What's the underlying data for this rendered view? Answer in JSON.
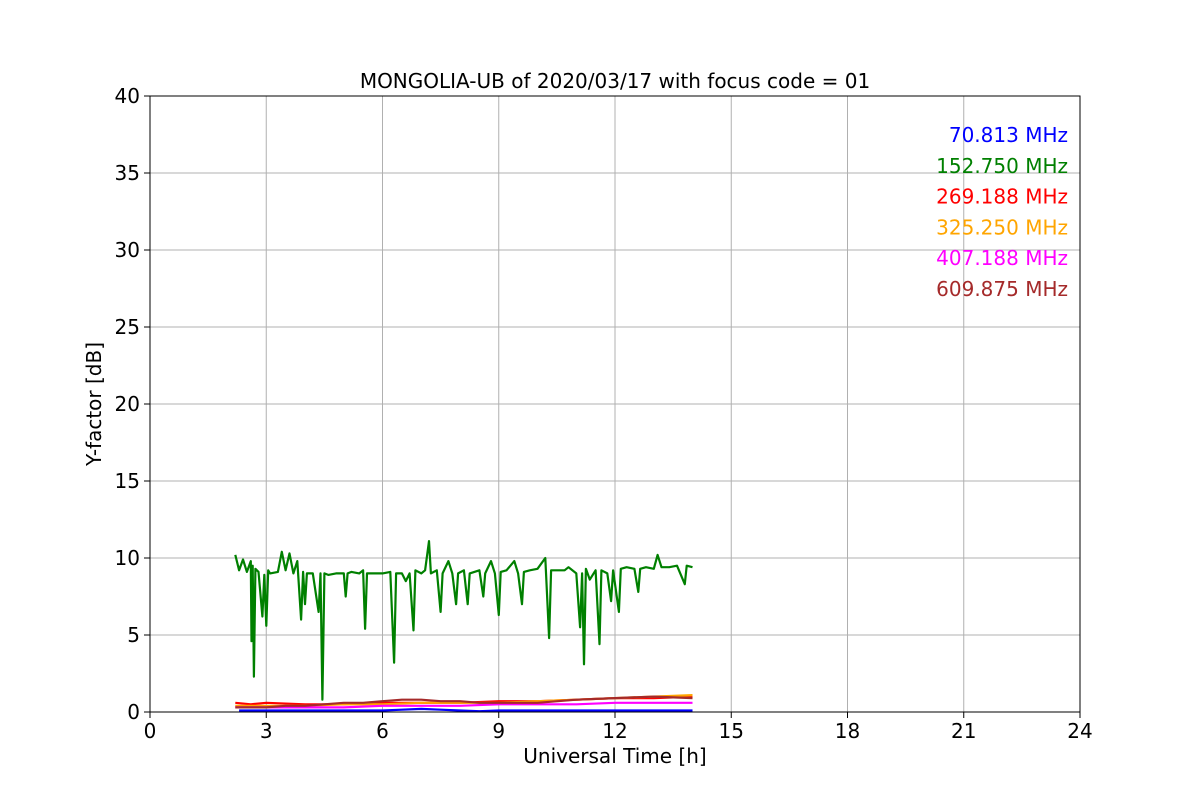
{
  "chart_data": {
    "type": "line",
    "title": "MONGOLIA-UB of 2020/03/17 with focus code = 01",
    "xlabel": "Universal Time [h]",
    "ylabel": "Y-factor [dB]",
    "xlim": [
      0,
      24
    ],
    "ylim": [
      0,
      40
    ],
    "xticks": [
      0,
      3,
      6,
      9,
      12,
      15,
      18,
      21,
      24
    ],
    "yticks": [
      0,
      5,
      10,
      15,
      20,
      25,
      30,
      35,
      40
    ],
    "grid": true,
    "legend_position": "top-right",
    "series": [
      {
        "name": "70.813 MHz",
        "color": "#0000ff",
        "points": [
          [
            2.3,
            0.1
          ],
          [
            3.0,
            0.1
          ],
          [
            4.0,
            0.1
          ],
          [
            5.0,
            0.1
          ],
          [
            6.0,
            0.1
          ],
          [
            6.5,
            0.15
          ],
          [
            7.0,
            0.2
          ],
          [
            7.5,
            0.15
          ],
          [
            8.0,
            0.1
          ],
          [
            8.5,
            0.05
          ],
          [
            9.0,
            0.1
          ],
          [
            10.0,
            0.1
          ],
          [
            11.0,
            0.1
          ],
          [
            12.0,
            0.1
          ],
          [
            13.0,
            0.1
          ],
          [
            14.0,
            0.1
          ]
        ]
      },
      {
        "name": "152.750 MHz",
        "color": "#008000",
        "points": [
          [
            2.2,
            10.2
          ],
          [
            2.3,
            9.2
          ],
          [
            2.4,
            9.9
          ],
          [
            2.5,
            9.1
          ],
          [
            2.6,
            9.8
          ],
          [
            2.62,
            4.6
          ],
          [
            2.65,
            9.5
          ],
          [
            2.68,
            2.3
          ],
          [
            2.72,
            9.3
          ],
          [
            2.8,
            9.1
          ],
          [
            2.9,
            6.2
          ],
          [
            2.95,
            8.9
          ],
          [
            3.0,
            5.6
          ],
          [
            3.05,
            9.2
          ],
          [
            3.1,
            9.0
          ],
          [
            3.3,
            9.1
          ],
          [
            3.4,
            10.4
          ],
          [
            3.5,
            9.2
          ],
          [
            3.6,
            10.3
          ],
          [
            3.7,
            9.0
          ],
          [
            3.8,
            9.8
          ],
          [
            3.9,
            6.0
          ],
          [
            3.95,
            9.1
          ],
          [
            4.0,
            7.0
          ],
          [
            4.05,
            9.0
          ],
          [
            4.2,
            9.0
          ],
          [
            4.35,
            6.5
          ],
          [
            4.4,
            9.0
          ],
          [
            4.45,
            0.8
          ],
          [
            4.5,
            9.0
          ],
          [
            4.6,
            8.9
          ],
          [
            4.8,
            9.0
          ],
          [
            5.0,
            9.0
          ],
          [
            5.05,
            7.5
          ],
          [
            5.1,
            9.0
          ],
          [
            5.2,
            9.1
          ],
          [
            5.4,
            9.0
          ],
          [
            5.5,
            9.2
          ],
          [
            5.55,
            5.4
          ],
          [
            5.6,
            9.0
          ],
          [
            5.8,
            9.0
          ],
          [
            6.0,
            9.0
          ],
          [
            6.2,
            9.1
          ],
          [
            6.3,
            3.2
          ],
          [
            6.35,
            9.0
          ],
          [
            6.5,
            9.0
          ],
          [
            6.6,
            8.5
          ],
          [
            6.7,
            9.0
          ],
          [
            6.8,
            5.3
          ],
          [
            6.85,
            9.2
          ],
          [
            7.0,
            9.0
          ],
          [
            7.1,
            9.2
          ],
          [
            7.2,
            11.1
          ],
          [
            7.25,
            9.0
          ],
          [
            7.4,
            9.2
          ],
          [
            7.5,
            6.5
          ],
          [
            7.55,
            9.0
          ],
          [
            7.7,
            9.8
          ],
          [
            7.8,
            9.0
          ],
          [
            7.9,
            7.0
          ],
          [
            7.95,
            9.0
          ],
          [
            8.1,
            9.2
          ],
          [
            8.2,
            7.0
          ],
          [
            8.25,
            9.0
          ],
          [
            8.5,
            9.2
          ],
          [
            8.6,
            7.5
          ],
          [
            8.65,
            9.0
          ],
          [
            8.8,
            9.8
          ],
          [
            8.9,
            9.0
          ],
          [
            9.0,
            6.3
          ],
          [
            9.05,
            9.1
          ],
          [
            9.2,
            9.2
          ],
          [
            9.4,
            9.8
          ],
          [
            9.5,
            9.0
          ],
          [
            9.6,
            7.0
          ],
          [
            9.65,
            9.1
          ],
          [
            9.8,
            9.2
          ],
          [
            10.0,
            9.3
          ],
          [
            10.2,
            10.0
          ],
          [
            10.3,
            4.8
          ],
          [
            10.35,
            9.2
          ],
          [
            10.5,
            9.2
          ],
          [
            10.7,
            9.2
          ],
          [
            10.8,
            9.4
          ],
          [
            11.0,
            9.0
          ],
          [
            11.1,
            5.5
          ],
          [
            11.15,
            9.0
          ],
          [
            11.2,
            3.1
          ],
          [
            11.25,
            9.3
          ],
          [
            11.35,
            8.6
          ],
          [
            11.5,
            9.2
          ],
          [
            11.6,
            4.4
          ],
          [
            11.65,
            9.2
          ],
          [
            11.8,
            9.0
          ],
          [
            11.9,
            7.2
          ],
          [
            11.95,
            9.2
          ],
          [
            12.1,
            6.5
          ],
          [
            12.15,
            9.3
          ],
          [
            12.3,
            9.4
          ],
          [
            12.5,
            9.3
          ],
          [
            12.6,
            7.8
          ],
          [
            12.65,
            9.3
          ],
          [
            12.8,
            9.4
          ],
          [
            13.0,
            9.3
          ],
          [
            13.1,
            10.2
          ],
          [
            13.2,
            9.4
          ],
          [
            13.4,
            9.4
          ],
          [
            13.6,
            9.5
          ],
          [
            13.8,
            8.3
          ],
          [
            13.85,
            9.5
          ],
          [
            14.0,
            9.4
          ]
        ]
      },
      {
        "name": "269.188 MHz",
        "color": "#ff0000",
        "points": [
          [
            2.2,
            0.6
          ],
          [
            2.6,
            0.5
          ],
          [
            3.0,
            0.6
          ],
          [
            4.0,
            0.5
          ],
          [
            5.0,
            0.5
          ],
          [
            6.0,
            0.6
          ],
          [
            7.0,
            0.6
          ],
          [
            8.0,
            0.6
          ],
          [
            9.0,
            0.7
          ],
          [
            10.0,
            0.7
          ],
          [
            11.0,
            0.8
          ],
          [
            12.0,
            0.9
          ],
          [
            13.0,
            0.9
          ],
          [
            14.0,
            1.0
          ]
        ]
      },
      {
        "name": "325.250 MHz",
        "color": "#ffa500",
        "points": [
          [
            2.2,
            0.4
          ],
          [
            3.0,
            0.4
          ],
          [
            4.0,
            0.4
          ],
          [
            5.0,
            0.5
          ],
          [
            6.0,
            0.5
          ],
          [
            7.0,
            0.6
          ],
          [
            8.0,
            0.6
          ],
          [
            9.0,
            0.6
          ],
          [
            10.0,
            0.7
          ],
          [
            11.0,
            0.8
          ],
          [
            12.0,
            0.9
          ],
          [
            13.0,
            1.0
          ],
          [
            14.0,
            1.1
          ]
        ]
      },
      {
        "name": "407.188 MHz",
        "color": "#ff00ff",
        "points": [
          [
            2.2,
            0.3
          ],
          [
            3.0,
            0.3
          ],
          [
            4.0,
            0.3
          ],
          [
            5.0,
            0.3
          ],
          [
            6.0,
            0.4
          ],
          [
            7.0,
            0.4
          ],
          [
            8.0,
            0.4
          ],
          [
            9.0,
            0.5
          ],
          [
            10.0,
            0.5
          ],
          [
            11.0,
            0.5
          ],
          [
            12.0,
            0.6
          ],
          [
            13.0,
            0.6
          ],
          [
            14.0,
            0.6
          ]
        ]
      },
      {
        "name": "609.875 MHz",
        "color": "#a52a2a",
        "points": [
          [
            2.2,
            0.3
          ],
          [
            3.0,
            0.3
          ],
          [
            3.5,
            0.4
          ],
          [
            4.0,
            0.4
          ],
          [
            5.0,
            0.6
          ],
          [
            5.5,
            0.6
          ],
          [
            6.0,
            0.7
          ],
          [
            6.5,
            0.8
          ],
          [
            7.0,
            0.8
          ],
          [
            7.5,
            0.7
          ],
          [
            8.0,
            0.7
          ],
          [
            8.5,
            0.6
          ],
          [
            9.0,
            0.6
          ],
          [
            10.0,
            0.6
          ],
          [
            11.0,
            0.8
          ],
          [
            12.0,
            0.9
          ],
          [
            13.0,
            1.0
          ],
          [
            14.0,
            0.9
          ]
        ]
      }
    ]
  }
}
